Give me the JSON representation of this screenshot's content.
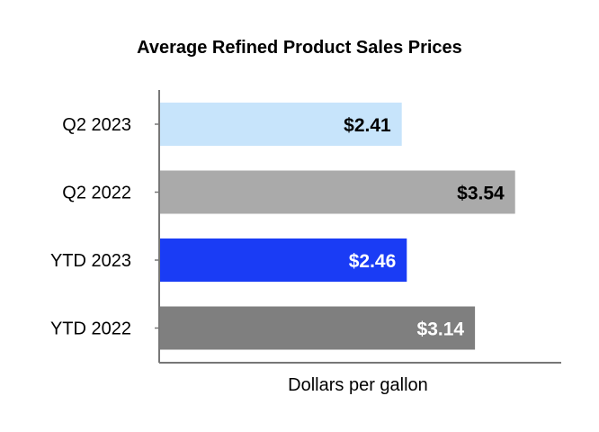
{
  "chart_data": {
    "type": "bar",
    "orientation": "horizontal",
    "title": "Average Refined Product Sales Prices",
    "xlabel": "Dollars per gallon",
    "ylabel": "",
    "xlim": [
      0,
      4.0
    ],
    "grid": false,
    "legend": "none",
    "categories": [
      "Q2 2023",
      "Q2 2022",
      "YTD 2023",
      "YTD 2022"
    ],
    "values": [
      2.41,
      3.54,
      2.46,
      3.14
    ],
    "value_labels": [
      "$2.41",
      "$3.54",
      "$2.46",
      "$3.14"
    ],
    "colors": [
      "#c7e4fb",
      "#aaaaaa",
      "#1a3cf5",
      "#7f7f7f"
    ],
    "label_colors": [
      "#000000",
      "#000000",
      "#ffffff",
      "#ffffff"
    ]
  }
}
